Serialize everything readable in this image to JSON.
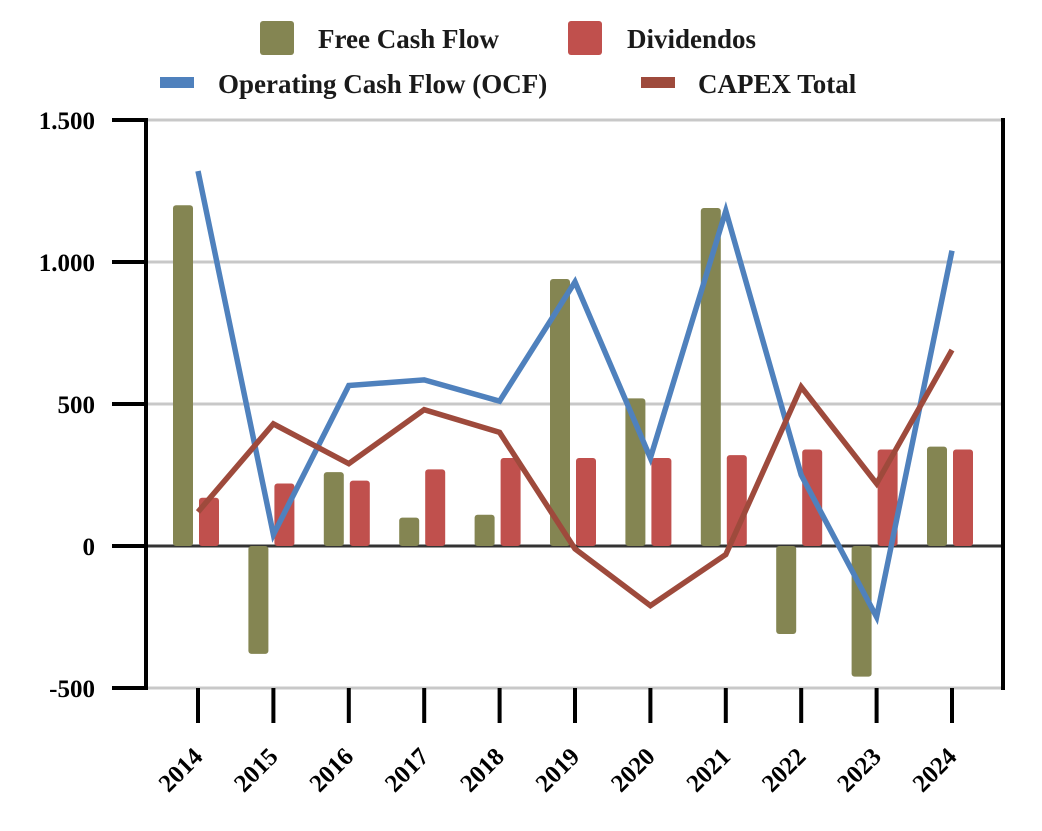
{
  "chart_data": {
    "type": "bar",
    "title": "",
    "xlabel": "",
    "ylabel": "",
    "ylim": [
      -500,
      1500
    ],
    "yticks": [
      1500,
      1000,
      500,
      0,
      -500
    ],
    "ytick_labels": [
      "1.500",
      "1.000",
      "500",
      "0",
      "-500"
    ],
    "grid": true,
    "legend_placement": "top",
    "categories": [
      "2014",
      "2015",
      "2016",
      "2017",
      "2018",
      "2019",
      "2020",
      "2021",
      "2022",
      "2023",
      "2024"
    ],
    "series": [
      {
        "name": "Free Cash Flow",
        "kind": "bar",
        "color": "#848552",
        "values": [
          1200,
          -380,
          260,
          100,
          110,
          940,
          520,
          1190,
          -310,
          -460,
          350
        ]
      },
      {
        "name": "Dividendos",
        "kind": "bar",
        "color": "#C0504D",
        "values": [
          170,
          220,
          230,
          270,
          310,
          310,
          310,
          320,
          340,
          340,
          340
        ]
      },
      {
        "name": "Operating Cash Flow (OCF)",
        "kind": "line",
        "color": "#4F81BD",
        "values": [
          1320,
          40,
          565,
          585,
          510,
          930,
          310,
          1180,
          250,
          -250,
          1040
        ]
      },
      {
        "name": "CAPEX Total",
        "kind": "line",
        "color": "#9E4A3C",
        "values": [
          120,
          430,
          290,
          480,
          400,
          -10,
          -210,
          -30,
          560,
          220,
          690
        ]
      }
    ]
  }
}
